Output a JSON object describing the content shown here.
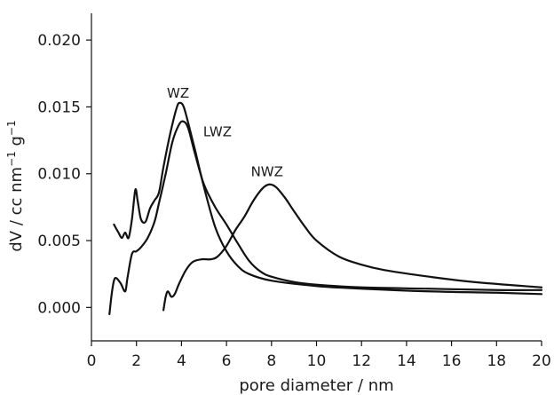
{
  "chart_data": {
    "type": "line",
    "title": "",
    "xlabel": "pore diameter / nm",
    "ylabel_main": "dV / cc nm",
    "ylabel_sup": "−1",
    "ylabel_unit": " g",
    "ylabel_sup2": "−1",
    "xlim": [
      0,
      20
    ],
    "ylim": [
      -0.0025,
      0.022
    ],
    "x_ticks": [
      0,
      2,
      4,
      6,
      8,
      10,
      12,
      14,
      16,
      18,
      20
    ],
    "x_tick_labels": [
      "0",
      "2",
      "4",
      "6",
      "8",
      "10",
      "12",
      "14",
      "16",
      "18",
      "20"
    ],
    "y_ticks": [
      0.0,
      0.005,
      0.01,
      0.015,
      0.02
    ],
    "y_tick_labels": [
      "0.000",
      "0.005",
      "0.010",
      "0.015",
      "0.020"
    ],
    "grid": false,
    "legend": "none",
    "series": [
      {
        "name": "WZ",
        "label_at": [
          3.85,
          0.0157
        ],
        "points": [
          [
            1.0,
            0.0062
          ],
          [
            1.2,
            0.0056
          ],
          [
            1.35,
            0.0052
          ],
          [
            1.5,
            0.0056
          ],
          [
            1.65,
            0.0052
          ],
          [
            1.8,
            0.0066
          ],
          [
            1.95,
            0.0088
          ],
          [
            2.05,
            0.008
          ],
          [
            2.2,
            0.0066
          ],
          [
            2.4,
            0.0064
          ],
          [
            2.6,
            0.0074
          ],
          [
            2.8,
            0.008
          ],
          [
            3.0,
            0.0086
          ],
          [
            3.2,
            0.0105
          ],
          [
            3.5,
            0.013
          ],
          [
            3.8,
            0.015
          ],
          [
            3.95,
            0.0153
          ],
          [
            4.1,
            0.015
          ],
          [
            4.3,
            0.0138
          ],
          [
            4.6,
            0.0118
          ],
          [
            5.0,
            0.009
          ],
          [
            5.5,
            0.006
          ],
          [
            6.0,
            0.0042
          ],
          [
            6.5,
            0.0031
          ],
          [
            7.0,
            0.0025
          ],
          [
            8.0,
            0.002
          ],
          [
            10.0,
            0.0016
          ],
          [
            12.0,
            0.0014
          ],
          [
            15.0,
            0.0012
          ],
          [
            18.0,
            0.0011
          ],
          [
            20.0,
            0.001
          ]
        ]
      },
      {
        "name": "LWZ",
        "label_at": [
          5.6,
          0.0128
        ],
        "points": [
          [
            0.8,
            -0.0005
          ],
          [
            0.9,
            0.001
          ],
          [
            1.0,
            0.002
          ],
          [
            1.1,
            0.0022
          ],
          [
            1.3,
            0.0018
          ],
          [
            1.5,
            0.0012
          ],
          [
            1.6,
            0.0022
          ],
          [
            1.8,
            0.004
          ],
          [
            2.0,
            0.0042
          ],
          [
            2.2,
            0.0045
          ],
          [
            2.5,
            0.0052
          ],
          [
            2.8,
            0.0064
          ],
          [
            3.0,
            0.0078
          ],
          [
            3.3,
            0.01
          ],
          [
            3.6,
            0.0124
          ],
          [
            3.9,
            0.0137
          ],
          [
            4.1,
            0.0139
          ],
          [
            4.3,
            0.0134
          ],
          [
            4.6,
            0.0115
          ],
          [
            5.0,
            0.0092
          ],
          [
            5.5,
            0.0075
          ],
          [
            6.0,
            0.0062
          ],
          [
            6.5,
            0.0048
          ],
          [
            7.0,
            0.0035
          ],
          [
            7.5,
            0.0027
          ],
          [
            8.0,
            0.0023
          ],
          [
            9.0,
            0.0019
          ],
          [
            10.0,
            0.0017
          ],
          [
            12.0,
            0.0015
          ],
          [
            15.0,
            0.0014
          ],
          [
            18.0,
            0.0013
          ],
          [
            20.0,
            0.0013
          ]
        ]
      },
      {
        "name": "NWZ",
        "label_at": [
          7.8,
          0.0098
        ],
        "points": [
          [
            3.2,
            -0.0002
          ],
          [
            3.3,
            0.0008
          ],
          [
            3.4,
            0.0012
          ],
          [
            3.55,
            0.0008
          ],
          [
            3.7,
            0.001
          ],
          [
            3.9,
            0.0018
          ],
          [
            4.2,
            0.0028
          ],
          [
            4.5,
            0.0034
          ],
          [
            4.9,
            0.0036
          ],
          [
            5.3,
            0.0036
          ],
          [
            5.6,
            0.0038
          ],
          [
            6.0,
            0.0046
          ],
          [
            6.4,
            0.0058
          ],
          [
            6.8,
            0.0068
          ],
          [
            7.2,
            0.008
          ],
          [
            7.6,
            0.0089
          ],
          [
            7.9,
            0.0092
          ],
          [
            8.2,
            0.009
          ],
          [
            8.6,
            0.0082
          ],
          [
            9.0,
            0.0072
          ],
          [
            9.5,
            0.006
          ],
          [
            10.0,
            0.005
          ],
          [
            11.0,
            0.0038
          ],
          [
            12.0,
            0.0032
          ],
          [
            13.0,
            0.0028
          ],
          [
            15.0,
            0.0023
          ],
          [
            17.0,
            0.0019
          ],
          [
            20.0,
            0.0015
          ]
        ]
      }
    ]
  }
}
